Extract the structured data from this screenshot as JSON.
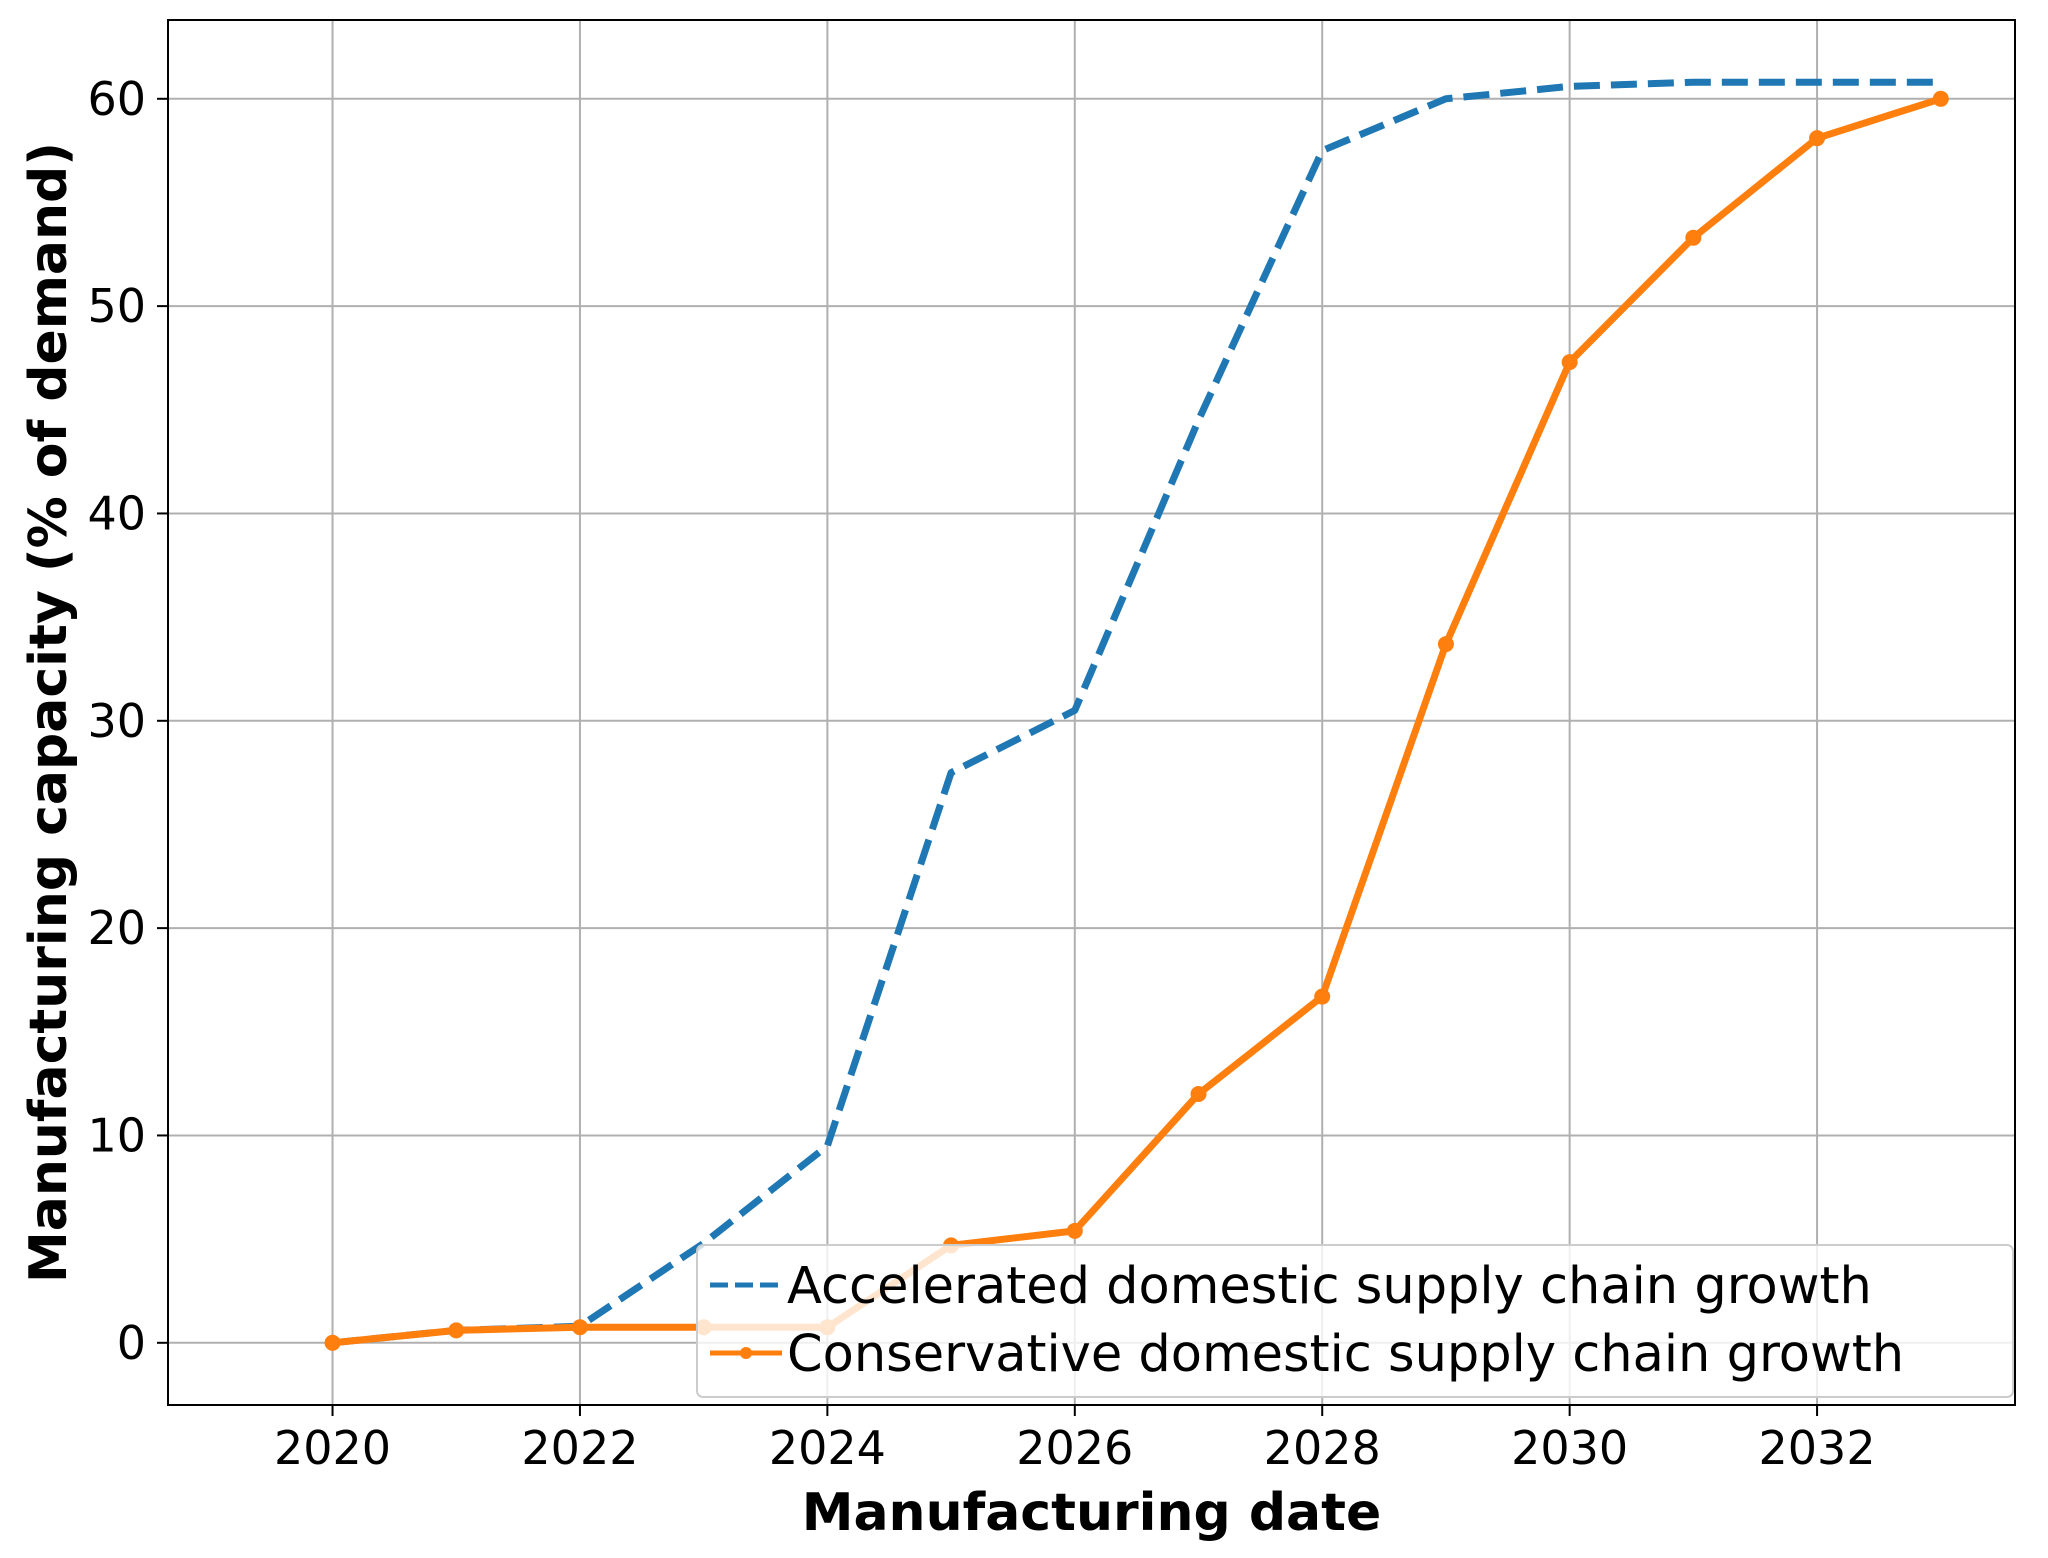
{
  "chart_data": {
    "type": "line",
    "xlabel": "Manufacturing date",
    "ylabel": "Manufacturing capacity (% of demand)",
    "xlim": [
      2018.67,
      2033.6
    ],
    "ylim": [
      -3,
      63.8
    ],
    "xticks": [
      2020,
      2022,
      2024,
      2026,
      2028,
      2030,
      2032
    ],
    "yticks": [
      0,
      10,
      20,
      30,
      40,
      50,
      60
    ],
    "grid": true,
    "legend_position": "lower-right",
    "series": [
      {
        "name": "Accelerated domestic supply chain growth",
        "color": "#1f77b4",
        "style": "dashed",
        "marker": "none",
        "x": [
          2020,
          2021,
          2022,
          2023,
          2024,
          2025,
          2026,
          2027,
          2028,
          2029,
          2030,
          2031,
          2032,
          2033
        ],
        "y": [
          0,
          0.6,
          0.8,
          4.8,
          9.5,
          27.5,
          30.5,
          44.5,
          57.5,
          60.0,
          60.6,
          60.8,
          60.8,
          60.8
        ]
      },
      {
        "name": "Conservative domestic supply chain growth",
        "color": "#ff7f0e",
        "style": "solid",
        "marker": "circle",
        "x": [
          2020,
          2021,
          2022,
          2023,
          2024,
          2025,
          2026,
          2027,
          2028,
          2029,
          2030,
          2031,
          2032,
          2033
        ],
        "y": [
          0,
          0.6,
          0.75,
          0.75,
          0.75,
          4.7,
          5.4,
          12.0,
          16.7,
          33.7,
          47.3,
          53.3,
          58.1,
          60.0
        ]
      }
    ]
  }
}
